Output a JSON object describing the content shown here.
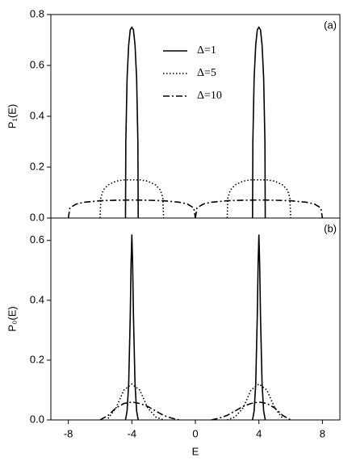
{
  "chart_data": [
    {
      "type": "line",
      "panel_label": "(a)",
      "y_label": "P₁(E)",
      "xlim": [
        -9.1,
        9.1
      ],
      "ylim": [
        0,
        0.8
      ],
      "yticks": [
        {
          "value": 0,
          "label": "0.0"
        },
        0.2,
        0.4,
        0.6,
        0.8
      ],
      "legend": "top-center",
      "series": [
        {
          "name": "Δ=1",
          "color": "#000000",
          "dash": "solid",
          "x": [
            -4.4,
            -4.38,
            -4.3,
            -4.2,
            -4.1,
            -4.0,
            -3.9,
            -3.8,
            -3.7,
            -3.62,
            -3.6,
            null,
            3.6,
            3.62,
            3.7,
            3.8,
            3.9,
            4.0,
            4.1,
            4.2,
            4.3,
            4.38,
            4.4
          ],
          "values": [
            0,
            0.3,
            0.55,
            0.68,
            0.74,
            0.75,
            0.74,
            0.68,
            0.55,
            0.3,
            0,
            null,
            0,
            0.3,
            0.55,
            0.68,
            0.74,
            0.75,
            0.74,
            0.68,
            0.55,
            0.3,
            0
          ]
        },
        {
          "name": "Δ=5",
          "color": "#000000",
          "dash": "dotted",
          "x": [
            -6,
            -5.95,
            -5.8,
            -5.5,
            -5,
            -4.5,
            -4,
            -3.5,
            -3,
            -2.5,
            -2.2,
            -2.05,
            -2,
            null,
            2,
            2.05,
            2.2,
            2.5,
            3,
            3.5,
            4,
            4.5,
            5,
            5.5,
            5.8,
            5.95,
            6
          ],
          "values": [
            0,
            0.08,
            0.11,
            0.13,
            0.145,
            0.15,
            0.15,
            0.15,
            0.145,
            0.13,
            0.11,
            0.08,
            0,
            null,
            0,
            0.08,
            0.11,
            0.13,
            0.145,
            0.15,
            0.15,
            0.15,
            0.145,
            0.13,
            0.11,
            0.08,
            0
          ]
        },
        {
          "name": "Δ=10",
          "color": "#000000",
          "dash": "dashdot",
          "x": [
            -8,
            -7.9,
            -7.5,
            -7,
            -6,
            -5,
            -4,
            -3,
            -2,
            -1,
            -0.5,
            -0.1,
            0,
            null,
            0,
            0.1,
            0.5,
            1,
            2,
            3,
            4,
            5,
            6,
            7,
            7.5,
            7.9,
            8
          ],
          "values": [
            0,
            0.04,
            0.055,
            0.062,
            0.068,
            0.07,
            0.071,
            0.07,
            0.068,
            0.062,
            0.055,
            0.04,
            0,
            null,
            0,
            0.04,
            0.055,
            0.062,
            0.068,
            0.07,
            0.071,
            0.07,
            0.068,
            0.062,
            0.055,
            0.04,
            0
          ]
        }
      ]
    },
    {
      "type": "line",
      "panel_label": "(b)",
      "y_label": "P₀(E)",
      "x_label": "E",
      "xlim": [
        -9.1,
        9.1
      ],
      "ylim": [
        0,
        0.675
      ],
      "xticks": [
        -8,
        -4,
        0,
        4,
        8
      ],
      "yticks": [
        {
          "value": 0,
          "label": "0.0"
        },
        0.2,
        0.4,
        0.6
      ],
      "series": [
        {
          "color": "#000000",
          "dash": "solid",
          "x": [
            -4.4,
            -4.3,
            -4.2,
            -4.1,
            -4.05,
            -4,
            -3.95,
            -3.9,
            -3.8,
            -3.7,
            -3.6,
            null,
            3.6,
            3.7,
            3.8,
            3.9,
            3.95,
            4,
            4.05,
            4.1,
            4.2,
            4.3,
            4.4
          ],
          "values": [
            0,
            0.03,
            0.12,
            0.35,
            0.52,
            0.62,
            0.52,
            0.35,
            0.12,
            0.03,
            0,
            null,
            0,
            0.03,
            0.12,
            0.35,
            0.52,
            0.62,
            0.52,
            0.35,
            0.12,
            0.03,
            0
          ]
        },
        {
          "color": "#000000",
          "dash": "dotted",
          "x": [
            -5.5,
            -5,
            -4.5,
            -4,
            -3.5,
            -3,
            -2.5,
            -2,
            null,
            2,
            2.5,
            3,
            3.5,
            4,
            4.5,
            5,
            5.5
          ],
          "values": [
            0.005,
            0.04,
            0.1,
            0.12,
            0.1,
            0.04,
            0.01,
            0,
            null,
            0,
            0.01,
            0.04,
            0.1,
            0.12,
            0.1,
            0.04,
            0.005
          ]
        },
        {
          "color": "#000000",
          "dash": "dashdot",
          "x": [
            -6,
            -5.5,
            -5,
            -4.5,
            -4,
            -3.5,
            -3,
            -2.5,
            -2,
            -1.5,
            -1,
            null,
            1,
            1.5,
            2,
            2.5,
            3,
            3.5,
            4,
            4.5,
            5,
            5.5,
            6
          ],
          "values": [
            0,
            0.015,
            0.04,
            0.055,
            0.06,
            0.055,
            0.045,
            0.03,
            0.015,
            0.006,
            0,
            null,
            0,
            0.006,
            0.015,
            0.03,
            0.045,
            0.055,
            0.06,
            0.055,
            0.04,
            0.015,
            0
          ]
        }
      ]
    }
  ]
}
